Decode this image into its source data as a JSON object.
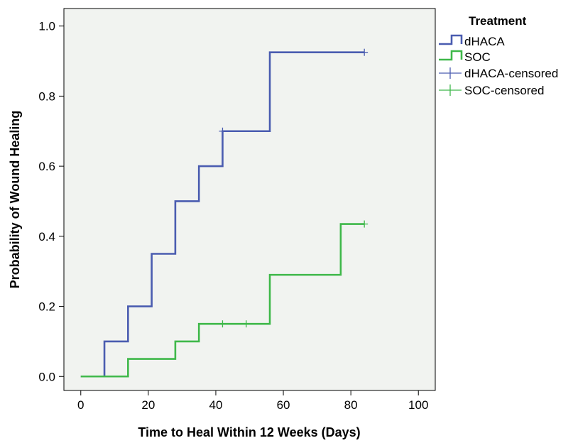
{
  "chart_data": {
    "type": "line",
    "step": true,
    "xlabel": "Time to Heal Within 12 Weeks (Days)",
    "ylabel": "Probability of Wound Healing",
    "xlim": [
      -5,
      105
    ],
    "ylim": [
      -0.04,
      1.05
    ],
    "x_ticks": [
      0,
      20,
      40,
      60,
      80,
      100
    ],
    "x_tick_labels": [
      "0",
      "20",
      "40",
      "60",
      "80",
      "100"
    ],
    "y_ticks": [
      0.0,
      0.2,
      0.4,
      0.6,
      0.8,
      1.0
    ],
    "y_tick_labels": [
      "0.0",
      "0.2",
      "0.4",
      "0.6",
      "0.8",
      "1.0"
    ],
    "grid": false,
    "plot_background": "#f1f3f0",
    "legend_position": "outside-right-top",
    "legend_title": "Treatment",
    "series": [
      {
        "name": "dHACA",
        "color": "#4a5cb0",
        "x": [
          0,
          7,
          14,
          21,
          28,
          35,
          42,
          56,
          84
        ],
        "y": [
          0.0,
          0.1,
          0.2,
          0.35,
          0.5,
          0.6,
          0.7,
          0.925,
          0.925
        ]
      },
      {
        "name": "SOC",
        "color": "#3fb84a",
        "x": [
          0,
          14,
          28,
          35,
          56,
          77,
          84
        ],
        "y": [
          0.0,
          0.05,
          0.1,
          0.15,
          0.29,
          0.435,
          0.435
        ]
      }
    ],
    "censored": [
      {
        "name": "dHACA-censored",
        "color": "#4a5cb0",
        "points": [
          [
            42,
            0.7
          ],
          [
            84,
            0.925
          ]
        ]
      },
      {
        "name": "SOC-censored",
        "color": "#3fb84a",
        "points": [
          [
            42,
            0.15
          ],
          [
            49,
            0.15
          ],
          [
            84,
            0.435
          ]
        ]
      }
    ]
  }
}
